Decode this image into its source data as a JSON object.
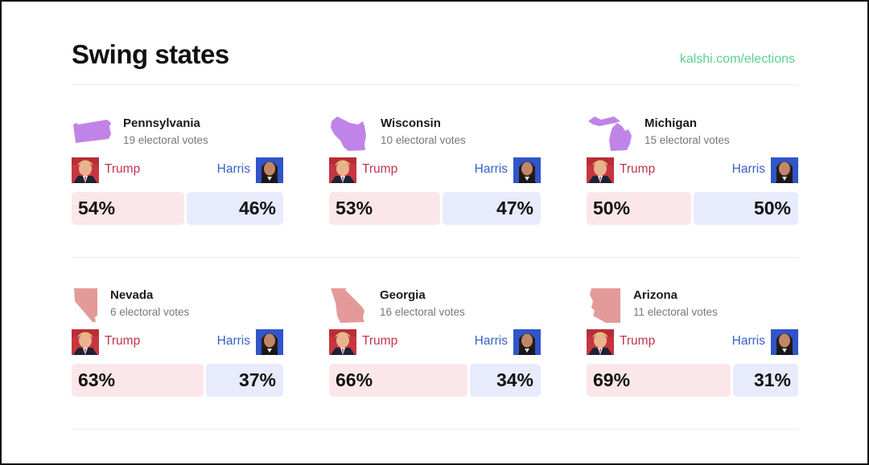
{
  "header": {
    "title": "Swing states",
    "link": "kalshi.com/elections"
  },
  "colors": {
    "trump_text": "#c2334f",
    "harris_text": "#3b5fc7",
    "trump_bar": "#fbe7ea",
    "harris_bar": "#e7ebfc",
    "purple_state": "#c084e8",
    "red_state": "#e39a98",
    "link": "#5ccf8c"
  },
  "states": [
    {
      "name": "Pennsylvania",
      "votes": "19 electoral votes",
      "trump_label": "Trump",
      "harris_label": "Harris",
      "trump_pct": "54%",
      "harris_pct": "46%",
      "trump": 54,
      "harris": 46,
      "shape": "pennsylvania-shape"
    },
    {
      "name": "Wisconsin",
      "votes": "10 electoral votes",
      "trump_label": "Trump",
      "harris_label": "Harris",
      "trump_pct": "53%",
      "harris_pct": "47%",
      "trump": 53,
      "harris": 47,
      "shape": "wisconsin-shape"
    },
    {
      "name": "Michigan",
      "votes": "15 electoral votes",
      "trump_label": "Trump",
      "harris_label": "Harris",
      "trump_pct": "50%",
      "harris_pct": "50%",
      "trump": 50,
      "harris": 50,
      "shape": "michigan-shape"
    },
    {
      "name": "Nevada",
      "votes": "6 electoral votes",
      "trump_label": "Trump",
      "harris_label": "Harris",
      "trump_pct": "63%",
      "harris_pct": "37%",
      "trump": 63,
      "harris": 37,
      "shape": "nevada-shape"
    },
    {
      "name": "Georgia",
      "votes": "16 electoral votes",
      "trump_label": "Trump",
      "harris_label": "Harris",
      "trump_pct": "66%",
      "harris_pct": "34%",
      "trump": 66,
      "harris": 34,
      "shape": "georgia-shape"
    },
    {
      "name": "Arizona",
      "votes": "11 electoral votes",
      "trump_label": "Trump",
      "harris_label": "Harris",
      "trump_pct": "69%",
      "harris_pct": "31%",
      "trump": 69,
      "harris": 31,
      "shape": "arizona-shape"
    }
  ]
}
